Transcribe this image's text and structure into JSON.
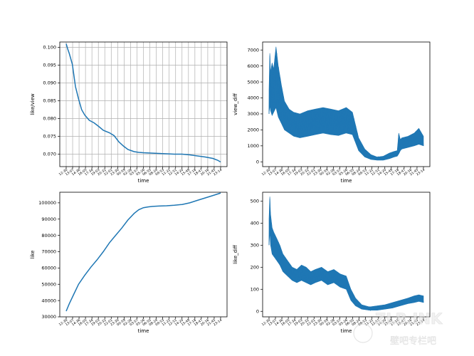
{
  "chart_data": [
    {
      "type": "line",
      "ylabel": "like/view",
      "xlabel": "time",
      "grid": true,
      "ylim": [
        0.0665,
        0.1015
      ],
      "yticks": [
        "0.070",
        "0.075",
        "0.080",
        "0.085",
        "0.090",
        "0.095",
        "0.100"
      ],
      "ytick_values": [
        0.07,
        0.075,
        0.08,
        0.085,
        0.09,
        0.095,
        0.1
      ],
      "xticks": [
        "12-30",
        "13-07",
        "14-36",
        "16-05",
        "17-34",
        "19-03",
        "20-32",
        "22-01",
        "23-30",
        "00-59",
        "02-28",
        "03-57",
        "05-26",
        "06-55",
        "08-24",
        "09-53",
        "11-22",
        "12-51",
        "14-20",
        "15-49",
        "17-18",
        "18-47",
        "20-16",
        "21-45",
        "23-14"
      ],
      "series": [
        {
          "x": [
            0,
            0.01,
            0.02,
            0.04,
            0.06,
            0.08,
            0.1,
            0.12,
            0.15,
            0.18,
            0.21,
            0.24,
            0.28,
            0.31,
            0.34,
            0.37,
            0.4,
            0.44,
            0.47,
            0.5,
            0.55,
            0.6,
            0.65,
            0.7,
            0.75,
            0.8,
            0.85,
            0.9,
            0.95,
            0.98,
            1.0
          ],
          "values": [
            0.101,
            0.0995,
            0.0983,
            0.0952,
            0.089,
            0.0855,
            0.0825,
            0.081,
            0.0795,
            0.0788,
            0.0778,
            0.0767,
            0.076,
            0.0752,
            0.0735,
            0.0723,
            0.0713,
            0.0707,
            0.0705,
            0.0704,
            0.0703,
            0.0702,
            0.0701,
            0.07,
            0.07,
            0.0698,
            0.0695,
            0.0692,
            0.0688,
            0.0683,
            0.0678
          ]
        }
      ]
    },
    {
      "type": "line",
      "ylabel": "view_diff",
      "xlabel": "time",
      "grid": false,
      "ylim": [
        -300,
        7500
      ],
      "yticks": [
        "0",
        "1000",
        "2000",
        "3000",
        "4000",
        "5000",
        "6000",
        "7000"
      ],
      "ytick_values": [
        0,
        1000,
        2000,
        3000,
        4000,
        5000,
        6000,
        7000
      ],
      "xticks": [
        "12-30",
        "13-07",
        "14-36",
        "16-05",
        "17-34",
        "19-03",
        "20-32",
        "22-01",
        "23-30",
        "00-59",
        "02-28",
        "03-57",
        "05-26",
        "06-55",
        "08-24",
        "09-53",
        "11-22",
        "12-51",
        "14-20",
        "15-49",
        "17-18",
        "18-47",
        "20-16",
        "21-45",
        "23-14"
      ],
      "series": [
        {
          "x": [
            0,
            0.005,
            0.01,
            0.02,
            0.03,
            0.045,
            0.06,
            0.08,
            0.1,
            0.13,
            0.16,
            0.2,
            0.25,
            0.3,
            0.35,
            0.4,
            0.45,
            0.5,
            0.54,
            0.58,
            0.62,
            0.66,
            0.7,
            0.74,
            0.78,
            0.81,
            0.83,
            0.84,
            0.85,
            0.86,
            0.9,
            0.94,
            0.97,
            1.0
          ],
          "upper": [
            4500,
            6800,
            5600,
            6200,
            5800,
            7200,
            6000,
            4800,
            3800,
            3300,
            3100,
            3000,
            3200,
            3300,
            3400,
            3300,
            3200,
            3400,
            3100,
            1500,
            800,
            450,
            300,
            350,
            550,
            650,
            700,
            1800,
            1400,
            1500,
            1600,
            1800,
            2100,
            1600
          ],
          "lower": [
            3000,
            3500,
            3200,
            2900,
            3100,
            3400,
            2800,
            2400,
            2000,
            1800,
            1600,
            1500,
            1600,
            1700,
            1800,
            1700,
            1650,
            1800,
            1700,
            700,
            300,
            150,
            100,
            100,
            200,
            300,
            350,
            500,
            700,
            800,
            900,
            1000,
            1100,
            1000
          ]
        }
      ]
    },
    {
      "type": "line",
      "ylabel": "like",
      "xlabel": "time",
      "grid": false,
      "ylim": [
        30000,
        106500
      ],
      "yticks": [
        "30000",
        "40000",
        "50000",
        "60000",
        "70000",
        "80000",
        "90000",
        "100000"
      ],
      "ytick_values": [
        30000,
        40000,
        50000,
        60000,
        70000,
        80000,
        90000,
        100000
      ],
      "xticks": [
        "12-30",
        "13-07",
        "14-36",
        "16-05",
        "17-34",
        "19-03",
        "20-32",
        "22-01",
        "23-30",
        "00-59",
        "02-28",
        "03-57",
        "05-26",
        "06-55",
        "08-24",
        "09-53",
        "11-22",
        "12-51",
        "14-20",
        "15-49",
        "17-18",
        "18-47",
        "20-16",
        "21-45",
        "23-14"
      ],
      "series": [
        {
          "x": [
            0,
            0.02,
            0.05,
            0.08,
            0.12,
            0.16,
            0.2,
            0.24,
            0.28,
            0.32,
            0.36,
            0.4,
            0.44,
            0.47,
            0.5,
            0.53,
            0.56,
            0.6,
            0.65,
            0.7,
            0.75,
            0.8,
            0.85,
            0.9,
            0.95,
            1.0
          ],
          "values": [
            33500,
            38000,
            44000,
            50000,
            55500,
            60500,
            65000,
            70000,
            75500,
            80000,
            84500,
            89500,
            93500,
            95800,
            97000,
            97500,
            97800,
            98000,
            98200,
            98500,
            99000,
            100000,
            101500,
            103000,
            104500,
            106000
          ]
        }
      ]
    },
    {
      "type": "line",
      "ylabel": "like_diff",
      "xlabel": "time",
      "grid": false,
      "ylim": [
        -25,
        540
      ],
      "yticks": [
        "0",
        "100",
        "200",
        "300",
        "400",
        "500"
      ],
      "ytick_values": [
        0,
        100,
        200,
        300,
        400,
        500
      ],
      "xticks": [
        "12-30",
        "13-07",
        "14-36",
        "16-05",
        "17-34",
        "19-03",
        "20-32",
        "22-01",
        "23-30",
        "00-59",
        "02-28",
        "03-57",
        "05-26",
        "06-55",
        "08-24",
        "09-53",
        "11-22",
        "12-51",
        "14-20",
        "15-49",
        "17-18",
        "18-47",
        "20-16",
        "21-45",
        "23-14"
      ],
      "series": [
        {
          "x": [
            0,
            0.005,
            0.01,
            0.02,
            0.03,
            0.05,
            0.07,
            0.09,
            0.12,
            0.15,
            0.18,
            0.21,
            0.24,
            0.27,
            0.3,
            0.34,
            0.38,
            0.42,
            0.46,
            0.5,
            0.53,
            0.56,
            0.6,
            0.65,
            0.7,
            0.75,
            0.8,
            0.85,
            0.9,
            0.94,
            0.97,
            1.0
          ],
          "upper": [
            420,
            520,
            440,
            380,
            360,
            330,
            300,
            260,
            230,
            200,
            190,
            210,
            200,
            180,
            190,
            200,
            180,
            190,
            170,
            160,
            100,
            60,
            30,
            20,
            25,
            30,
            40,
            50,
            60,
            70,
            75,
            70
          ],
          "lower": [
            300,
            360,
            300,
            260,
            250,
            230,
            210,
            180,
            160,
            140,
            130,
            140,
            130,
            120,
            130,
            140,
            120,
            130,
            110,
            100,
            50,
            25,
            10,
            5,
            5,
            10,
            15,
            25,
            35,
            40,
            45,
            40
          ]
        }
      ]
    }
  ],
  "watermark": {
    "line1": "ZLB.INK",
    "line2": "壁吧专栏吧"
  }
}
